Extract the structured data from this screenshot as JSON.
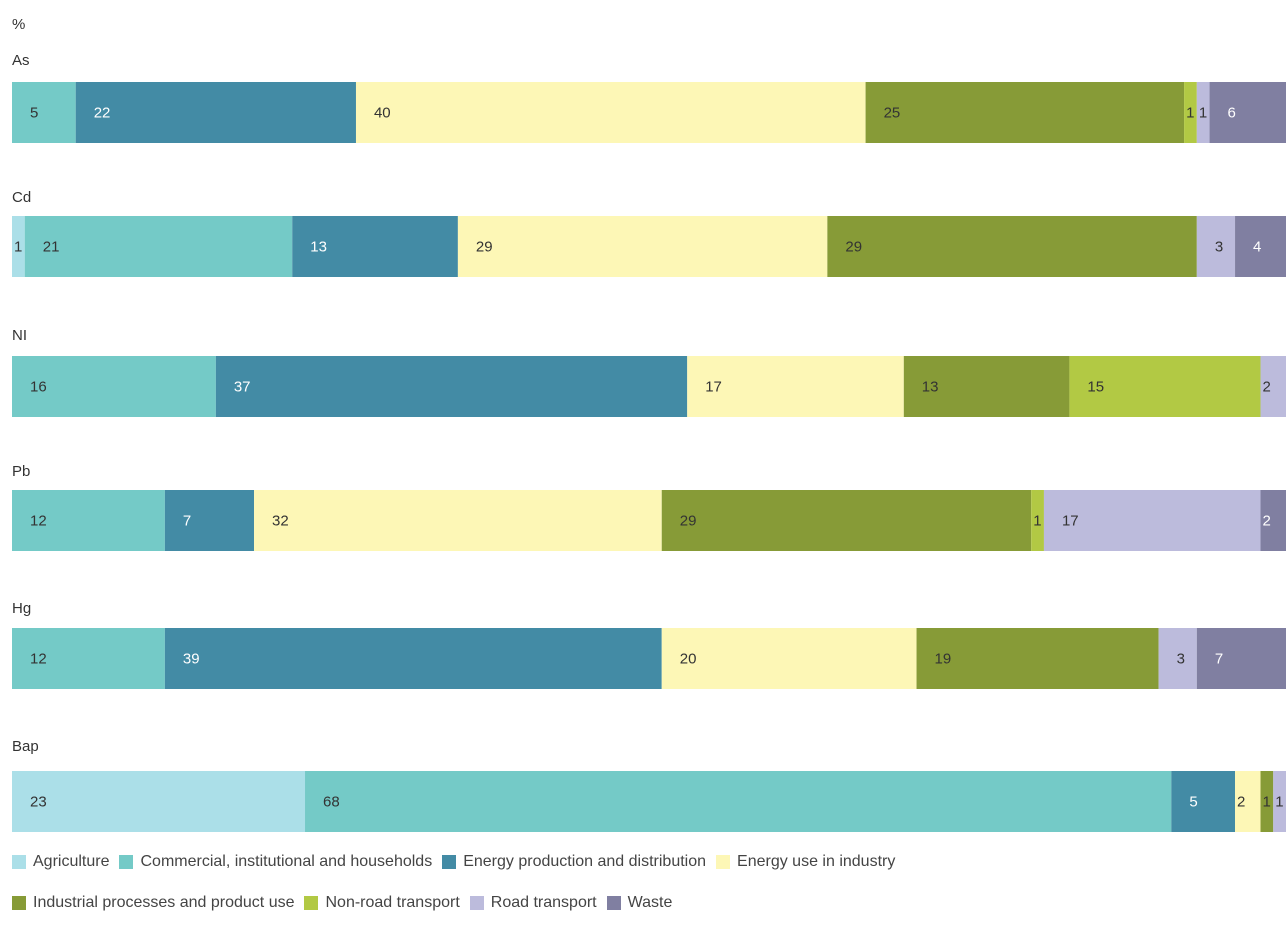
{
  "chart_data": {
    "type": "bar",
    "orientation": "horizontal",
    "stacked": true,
    "unit": "%",
    "legend_position": "bottom",
    "categories": [
      "As",
      "Cd",
      "NI",
      "Pb",
      "Hg",
      "Bap"
    ],
    "series": [
      {
        "name": "Agriculture",
        "color": "#abdfe8",
        "values": [
          0,
          1,
          0,
          0,
          0,
          23
        ]
      },
      {
        "name": "Commercial, institutional and households",
        "color": "#74cac7",
        "values": [
          5,
          21,
          16,
          12,
          12,
          68
        ]
      },
      {
        "name": "Energy production and distribution",
        "color": "#438ba5",
        "values": [
          22,
          13,
          37,
          7,
          39,
          5
        ]
      },
      {
        "name": "Energy use in industry",
        "color": "#fdf7b6",
        "values": [
          40,
          29,
          17,
          32,
          20,
          2
        ]
      },
      {
        "name": "Industrial processes and product use",
        "color": "#879b37",
        "values": [
          25,
          29,
          13,
          29,
          19,
          1
        ]
      },
      {
        "name": "Non-road transport",
        "color": "#b2c944",
        "values": [
          1,
          0,
          15,
          1,
          0,
          0
        ]
      },
      {
        "name": "Road transport",
        "color": "#bcbbdc",
        "values": [
          1,
          3,
          2,
          17,
          3,
          1
        ]
      },
      {
        "name": "Waste",
        "color": "#807fa1",
        "values": [
          6,
          4,
          0,
          2,
          7,
          0
        ]
      }
    ]
  }
}
